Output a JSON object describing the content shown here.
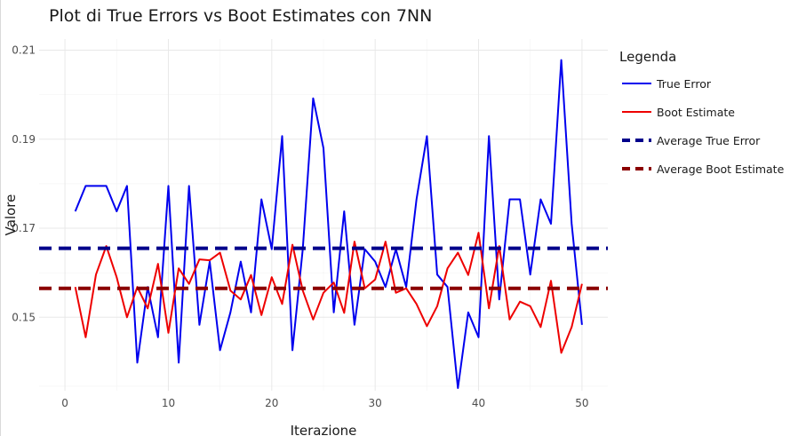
{
  "chart_data": {
    "type": "line",
    "title": "Plot di True Errors vs Boot Estimates con 7NN",
    "xlabel": "Iterazione",
    "ylabel": "Valore",
    "xlim": [
      -2.5,
      52.5
    ],
    "ylim": [
      0.1335,
      0.2125
    ],
    "x_ticks": [
      0,
      10,
      20,
      30,
      40,
      50
    ],
    "x_tick_labels": [
      "0",
      "10",
      "20",
      "30",
      "40",
      "50"
    ],
    "y_ticks": [
      0.15,
      0.17,
      0.19,
      0.21
    ],
    "y_tick_labels": [
      "0.15",
      "0.17",
      "0.19",
      "0.21"
    ],
    "grid": true,
    "legend_title": "Legenda",
    "legend_position": "right",
    "x": [
      1,
      2,
      3,
      4,
      5,
      6,
      7,
      8,
      9,
      10,
      11,
      12,
      13,
      14,
      15,
      16,
      17,
      18,
      19,
      20,
      21,
      22,
      23,
      24,
      25,
      26,
      27,
      28,
      29,
      30,
      31,
      32,
      33,
      34,
      35,
      36,
      37,
      38,
      39,
      40,
      41,
      42,
      43,
      44,
      45,
      46,
      47,
      48,
      49,
      50
    ],
    "series": [
      {
        "name": "True Error",
        "color": "#0000ee",
        "style": "solid",
        "values": [
          0.1738,
          0.1795,
          0.1795,
          0.1795,
          0.1738,
          0.1795,
          0.1398,
          0.1568,
          0.1455,
          0.1795,
          0.1398,
          0.1795,
          0.1483,
          0.1625,
          0.1426,
          0.1511,
          0.1625,
          0.1511,
          0.1765,
          0.1653,
          0.1907,
          0.1426,
          0.1653,
          0.1992,
          0.188,
          0.1511,
          0.1738,
          0.1483,
          0.1653,
          0.1625,
          0.1568,
          0.1653,
          0.1568,
          0.1765,
          0.1907,
          0.1596,
          0.1568,
          0.1341,
          0.1511,
          0.1455,
          0.1907,
          0.154,
          0.1765,
          0.1765,
          0.1596,
          0.1765,
          0.171,
          0.2078,
          0.171,
          0.1483
        ]
      },
      {
        "name": "Boot Estimate",
        "color": "#ee0000",
        "style": "solid",
        "values": [
          0.1568,
          0.1455,
          0.1596,
          0.166,
          0.159,
          0.15,
          0.1568,
          0.152,
          0.162,
          0.1465,
          0.161,
          0.1575,
          0.163,
          0.1628,
          0.1645,
          0.156,
          0.154,
          0.1595,
          0.1505,
          0.159,
          0.153,
          0.1663,
          0.156,
          0.1495,
          0.1555,
          0.1578,
          0.151,
          0.167,
          0.1565,
          0.1585,
          0.167,
          0.1555,
          0.1565,
          0.153,
          0.148,
          0.1525,
          0.161,
          0.1645,
          0.1595,
          0.169,
          0.152,
          0.166,
          0.1495,
          0.1535,
          0.1525,
          0.1478,
          0.1582,
          0.142,
          0.1478,
          0.1575
        ]
      },
      {
        "name": "Average True Error",
        "color": "#00008b",
        "style": "dashed",
        "constant": 0.1655
      },
      {
        "name": "Average Boot Estimate",
        "color": "#8b0000",
        "style": "dashed",
        "constant": 0.1565
      }
    ]
  }
}
